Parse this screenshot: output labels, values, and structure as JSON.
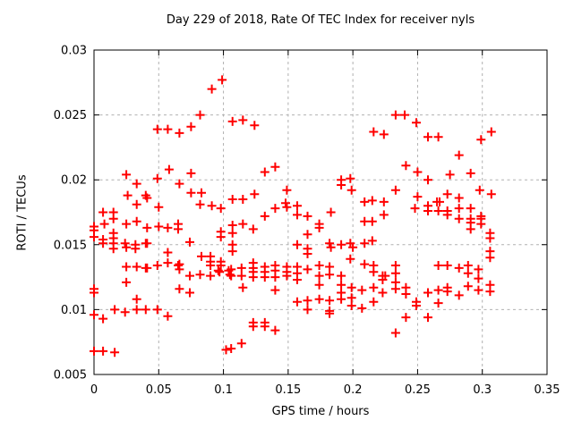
{
  "chart_data": {
    "type": "scatter",
    "title": "Day 229 of 2018, Rate Of TEC Index for receiver nyls",
    "xlabel": "GPS time / hours",
    "ylabel": "ROTI / TECUs",
    "xlim": [
      0,
      0.35
    ],
    "ylim": [
      0.005,
      0.03
    ],
    "xticks": [
      0,
      0.05,
      0.1,
      0.15,
      0.2,
      0.25,
      0.3,
      0.35
    ],
    "xtick_labels": [
      "0",
      "0.05",
      "0.1",
      "0.15",
      "0.2",
      "0.25",
      "0.3",
      "0.35"
    ],
    "yticks": [
      0.005,
      0.01,
      0.015,
      0.02,
      0.025,
      0.03
    ],
    "ytick_labels": [
      "0.005",
      "0.01",
      "0.015",
      "0.02",
      "0.025",
      "0.03"
    ],
    "grid": true,
    "legend": "none",
    "marker": "plus",
    "marker_color": "#ff0000",
    "grid_color": "#b0b0b0",
    "axis_color": "#000000",
    "series": [
      {
        "name": "ROTI",
        "points": [
          [
            0.049,
            0.0239
          ],
          [
            0.057,
            0.0239
          ],
          [
            0.066,
            0.0236
          ],
          [
            0.075,
            0.0241
          ],
          [
            0.082,
            0.025
          ],
          [
            0.091,
            0.027
          ],
          [
            0.099,
            0.0277
          ],
          [
            0.107,
            0.0245
          ],
          [
            0.115,
            0.0246
          ],
          [
            0.124,
            0.0242
          ],
          [
            0.216,
            0.0237
          ],
          [
            0.224,
            0.0235
          ],
          [
            0.233,
            0.025
          ],
          [
            0.24,
            0.025
          ],
          [
            0.249,
            0.0244
          ],
          [
            0.258,
            0.0233
          ],
          [
            0.266,
            0.0233
          ],
          [
            0.282,
            0.0219
          ],
          [
            0.299,
            0.0231
          ],
          [
            0.307,
            0.0237
          ],
          [
            0.241,
            0.0211
          ],
          [
            0.25,
            0.0206
          ],
          [
            0.275,
            0.0204
          ],
          [
            0.291,
            0.0205
          ],
          [
            0.132,
            0.0206
          ],
          [
            0.14,
            0.021
          ],
          [
            0.025,
            0.0204
          ],
          [
            0.058,
            0.0208
          ],
          [
            0.191,
            0.02
          ],
          [
            0.191,
            0.0196
          ],
          [
            0.198,
            0.0201
          ],
          [
            0.258,
            0.02
          ],
          [
            0.033,
            0.0197
          ],
          [
            0.049,
            0.0201
          ],
          [
            0.066,
            0.0197
          ],
          [
            0.075,
            0.0205
          ],
          [
            0.026,
            0.0188
          ],
          [
            0.033,
            0.0181
          ],
          [
            0.04,
            0.0188
          ],
          [
            0.041,
            0.0186
          ],
          [
            0.075,
            0.019
          ],
          [
            0.083,
            0.019
          ],
          [
            0.05,
            0.0179
          ],
          [
            0.082,
            0.0181
          ],
          [
            0.091,
            0.018
          ],
          [
            0.098,
            0.0178
          ],
          [
            0.107,
            0.0185
          ],
          [
            0.115,
            0.0185
          ],
          [
            0.124,
            0.0189
          ],
          [
            0.149,
            0.0192
          ],
          [
            0.148,
            0.0182
          ],
          [
            0.149,
            0.0179
          ],
          [
            0.14,
            0.0178
          ],
          [
            0.132,
            0.0172
          ],
          [
            0.157,
            0.018
          ],
          [
            0.183,
            0.0175
          ],
          [
            0.199,
            0.0192
          ],
          [
            0.209,
            0.0183
          ],
          [
            0.215,
            0.0184
          ],
          [
            0.224,
            0.0183
          ],
          [
            0.233,
            0.0192
          ],
          [
            0.25,
            0.0187
          ],
          [
            0.248,
            0.0178
          ],
          [
            0.258,
            0.018
          ],
          [
            0.258,
            0.0176
          ],
          [
            0.265,
            0.0183
          ],
          [
            0.267,
            0.0183
          ],
          [
            0.266,
            0.0176
          ],
          [
            0.273,
            0.0189
          ],
          [
            0.273,
            0.0176
          ],
          [
            0.273,
            0.0173
          ],
          [
            0.282,
            0.0186
          ],
          [
            0.282,
            0.0178
          ],
          [
            0.291,
            0.0178
          ],
          [
            0.298,
            0.0192
          ],
          [
            0.307,
            0.0189
          ],
          [
            0.007,
            0.0175
          ],
          [
            0.015,
            0.0175
          ],
          [
            0.015,
            0.017
          ],
          [
            0.025,
            0.0166
          ],
          [
            0.033,
            0.0168
          ],
          [
            0.041,
            0.0163
          ],
          [
            0.05,
            0.0164
          ],
          [
            0.057,
            0.0163
          ],
          [
            0.065,
            0.0166
          ],
          [
            0.065,
            0.0162
          ],
          [
            0.0,
            0.0164
          ],
          [
            0.0,
            0.0161
          ],
          [
            0.0,
            0.0156
          ],
          [
            0.008,
            0.0166
          ],
          [
            0.007,
            0.0154
          ],
          [
            0.007,
            0.0151
          ],
          [
            0.015,
            0.0159
          ],
          [
            0.015,
            0.0155
          ],
          [
            0.015,
            0.0151
          ],
          [
            0.015,
            0.0147
          ],
          [
            0.024,
            0.0151
          ],
          [
            0.025,
            0.0148
          ],
          [
            0.032,
            0.015
          ],
          [
            0.032,
            0.0147
          ],
          [
            0.04,
            0.0151
          ],
          [
            0.041,
            0.0151
          ],
          [
            0.074,
            0.0152
          ],
          [
            0.098,
            0.016
          ],
          [
            0.098,
            0.0156
          ],
          [
            0.107,
            0.0165
          ],
          [
            0.115,
            0.0166
          ],
          [
            0.123,
            0.0162
          ],
          [
            0.107,
            0.0159
          ],
          [
            0.107,
            0.015
          ],
          [
            0.107,
            0.0145
          ],
          [
            0.157,
            0.0173
          ],
          [
            0.165,
            0.0172
          ],
          [
            0.174,
            0.0166
          ],
          [
            0.174,
            0.0163
          ],
          [
            0.165,
            0.0158
          ],
          [
            0.157,
            0.015
          ],
          [
            0.165,
            0.0147
          ],
          [
            0.165,
            0.0143
          ],
          [
            0.182,
            0.0151
          ],
          [
            0.183,
            0.0148
          ],
          [
            0.191,
            0.015
          ],
          [
            0.198,
            0.0151
          ],
          [
            0.2,
            0.0148
          ],
          [
            0.209,
            0.0151
          ],
          [
            0.209,
            0.0168
          ],
          [
            0.215,
            0.0168
          ],
          [
            0.224,
            0.0173
          ],
          [
            0.215,
            0.0153
          ],
          [
            0.282,
            0.017
          ],
          [
            0.291,
            0.017
          ],
          [
            0.291,
            0.0167
          ],
          [
            0.291,
            0.0162
          ],
          [
            0.299,
            0.0172
          ],
          [
            0.299,
            0.017
          ],
          [
            0.299,
            0.0166
          ],
          [
            0.306,
            0.0159
          ],
          [
            0.306,
            0.0155
          ],
          [
            0.057,
            0.0144
          ],
          [
            0.057,
            0.0136
          ],
          [
            0.066,
            0.0135
          ],
          [
            0.065,
            0.0134
          ],
          [
            0.066,
            0.0131
          ],
          [
            0.083,
            0.0141
          ],
          [
            0.09,
            0.0141
          ],
          [
            0.09,
            0.0137
          ],
          [
            0.09,
            0.0134
          ],
          [
            0.098,
            0.0137
          ],
          [
            0.098,
            0.0134
          ],
          [
            0.025,
            0.0133
          ],
          [
            0.033,
            0.0133
          ],
          [
            0.04,
            0.0132
          ],
          [
            0.041,
            0.0132
          ],
          [
            0.049,
            0.0134
          ],
          [
            0.096,
            0.013
          ],
          [
            0.104,
            0.013
          ],
          [
            0.106,
            0.0131
          ],
          [
            0.106,
            0.0126
          ],
          [
            0.114,
            0.0132
          ],
          [
            0.114,
            0.0126
          ],
          [
            0.123,
            0.0136
          ],
          [
            0.123,
            0.0132
          ],
          [
            0.123,
            0.0129
          ],
          [
            0.123,
            0.0125
          ],
          [
            0.132,
            0.0133
          ],
          [
            0.132,
            0.0129
          ],
          [
            0.132,
            0.0125
          ],
          [
            0.14,
            0.0134
          ],
          [
            0.14,
            0.013
          ],
          [
            0.14,
            0.0125
          ],
          [
            0.149,
            0.0133
          ],
          [
            0.149,
            0.0129
          ],
          [
            0.149,
            0.0126
          ],
          [
            0.157,
            0.0133
          ],
          [
            0.157,
            0.0128
          ],
          [
            0.165,
            0.0131
          ],
          [
            0.174,
            0.0134
          ],
          [
            0.174,
            0.0126
          ],
          [
            0.182,
            0.0133
          ],
          [
            0.182,
            0.0127
          ],
          [
            0.191,
            0.0126
          ],
          [
            0.198,
            0.0139
          ],
          [
            0.209,
            0.0135
          ],
          [
            0.216,
            0.0134
          ],
          [
            0.216,
            0.0129
          ],
          [
            0.223,
            0.0126
          ],
          [
            0.225,
            0.0126
          ],
          [
            0.223,
            0.0123
          ],
          [
            0.233,
            0.0134
          ],
          [
            0.233,
            0.0128
          ],
          [
            0.266,
            0.0134
          ],
          [
            0.273,
            0.0134
          ],
          [
            0.282,
            0.0132
          ],
          [
            0.289,
            0.0134
          ],
          [
            0.289,
            0.0128
          ],
          [
            0.297,
            0.0131
          ],
          [
            0.297,
            0.0124
          ],
          [
            0.306,
            0.0145
          ],
          [
            0.306,
            0.014
          ],
          [
            0.0,
            0.0116
          ],
          [
            0.0,
            0.0113
          ],
          [
            0.025,
            0.0121
          ],
          [
            0.033,
            0.0108
          ],
          [
            0.066,
            0.0116
          ],
          [
            0.074,
            0.0126
          ],
          [
            0.074,
            0.0113
          ],
          [
            0.082,
            0.0127
          ],
          [
            0.09,
            0.0126
          ],
          [
            0.097,
            0.0129
          ],
          [
            0.105,
            0.0127
          ],
          [
            0.115,
            0.0117
          ],
          [
            0.14,
            0.0115
          ],
          [
            0.157,
            0.0123
          ],
          [
            0.174,
            0.0119
          ],
          [
            0.191,
            0.0119
          ],
          [
            0.191,
            0.0113
          ],
          [
            0.199,
            0.0117
          ],
          [
            0.199,
            0.0109
          ],
          [
            0.207,
            0.0115
          ],
          [
            0.216,
            0.0117
          ],
          [
            0.216,
            0.0106
          ],
          [
            0.223,
            0.0113
          ],
          [
            0.233,
            0.0121
          ],
          [
            0.233,
            0.0116
          ],
          [
            0.241,
            0.0117
          ],
          [
            0.241,
            0.0112
          ],
          [
            0.249,
            0.0106
          ],
          [
            0.249,
            0.0103
          ],
          [
            0.258,
            0.0113
          ],
          [
            0.266,
            0.0115
          ],
          [
            0.266,
            0.0105
          ],
          [
            0.273,
            0.0117
          ],
          [
            0.273,
            0.0114
          ],
          [
            0.282,
            0.0111
          ],
          [
            0.289,
            0.0118
          ],
          [
            0.297,
            0.0115
          ],
          [
            0.306,
            0.0119
          ],
          [
            0.306,
            0.0114
          ],
          [
            0.157,
            0.0106
          ],
          [
            0.165,
            0.0107
          ],
          [
            0.174,
            0.0108
          ],
          [
            0.182,
            0.0107
          ],
          [
            0.191,
            0.0108
          ],
          [
            0.199,
            0.0103
          ],
          [
            0.207,
            0.0101
          ],
          [
            0.016,
            0.01
          ],
          [
            0.024,
            0.0098
          ],
          [
            0.033,
            0.01
          ],
          [
            0.04,
            0.01
          ],
          [
            0.049,
            0.01
          ],
          [
            0.165,
            0.01
          ],
          [
            0.182,
            0.0099
          ],
          [
            0.182,
            0.0097
          ],
          [
            0.0,
            0.0096
          ],
          [
            0.007,
            0.0093
          ],
          [
            0.057,
            0.0095
          ],
          [
            0.123,
            0.009
          ],
          [
            0.123,
            0.0087
          ],
          [
            0.132,
            0.009
          ],
          [
            0.132,
            0.0087
          ],
          [
            0.14,
            0.0084
          ],
          [
            0.233,
            0.0082
          ],
          [
            0.241,
            0.0094
          ],
          [
            0.258,
            0.0094
          ],
          [
            0.102,
            0.0069
          ],
          [
            0.106,
            0.007
          ],
          [
            0.114,
            0.0074
          ],
          [
            0.0,
            0.0068
          ],
          [
            0.007,
            0.0068
          ],
          [
            0.016,
            0.0067
          ]
        ]
      }
    ]
  }
}
